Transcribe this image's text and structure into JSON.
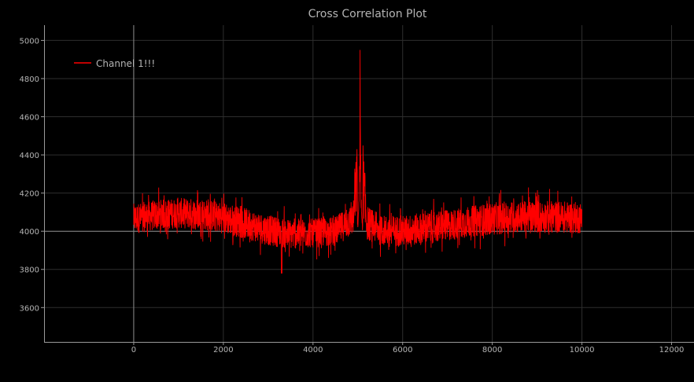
{
  "chart_data": {
    "type": "line",
    "title": "Cross Correlation Plot",
    "xlabel": "",
    "ylabel": "",
    "xlim": [
      -2000,
      12500
    ],
    "ylim": [
      3420,
      5080
    ],
    "x_ticks": [
      0,
      2000,
      4000,
      6000,
      8000,
      10000,
      12000
    ],
    "y_ticks": [
      3600,
      3800,
      4000,
      4200,
      4400,
      4600,
      4800,
      5000
    ],
    "x_tick_labels": [
      "0",
      "2000",
      "4000",
      "6000",
      "8000",
      "10000",
      "12000"
    ],
    "y_tick_labels": [
      "3600",
      "3800",
      "4000",
      "4200",
      "4400",
      "4600",
      "4800",
      "5000"
    ],
    "grid": true,
    "zero_axis_lines": {
      "x": 0,
      "y": 4000
    },
    "legend": {
      "position": "top-left"
    },
    "series": [
      {
        "name": "Channel 1!!!",
        "color": "#ff0000",
        "x_range": [
          0,
          10000
        ],
        "peak": {
          "x": 5050,
          "y": 4950
        },
        "envelope_x": [
          0,
          500,
          1000,
          1500,
          2000,
          2500,
          3000,
          3500,
          4000,
          4500,
          4900,
          5050,
          5200,
          5500,
          6000,
          6500,
          7000,
          7500,
          8000,
          8500,
          9000,
          9500,
          10000
        ],
        "envelope_upper": [
          4210,
          4230,
          4240,
          4240,
          4220,
          4190,
          4150,
          4130,
          4130,
          4140,
          4220,
          4950,
          4210,
          4150,
          4150,
          4170,
          4180,
          4200,
          4220,
          4230,
          4230,
          4230,
          4220
        ],
        "envelope_lower": [
          3920,
          3940,
          3950,
          3940,
          3920,
          3890,
          3860,
          3840,
          3850,
          3860,
          3910,
          3960,
          3880,
          3860,
          3850,
          3860,
          3880,
          3900,
          3910,
          3920,
          3920,
          3920,
          3920
        ],
        "min": {
          "x": 3300,
          "y": 3780
        }
      }
    ]
  },
  "colors": {
    "background": "#000000",
    "grid": "#2e2e2e",
    "zero_axis": "#8a8a8a",
    "axis": "#9a9a9a",
    "text": "#b4b4b4"
  }
}
